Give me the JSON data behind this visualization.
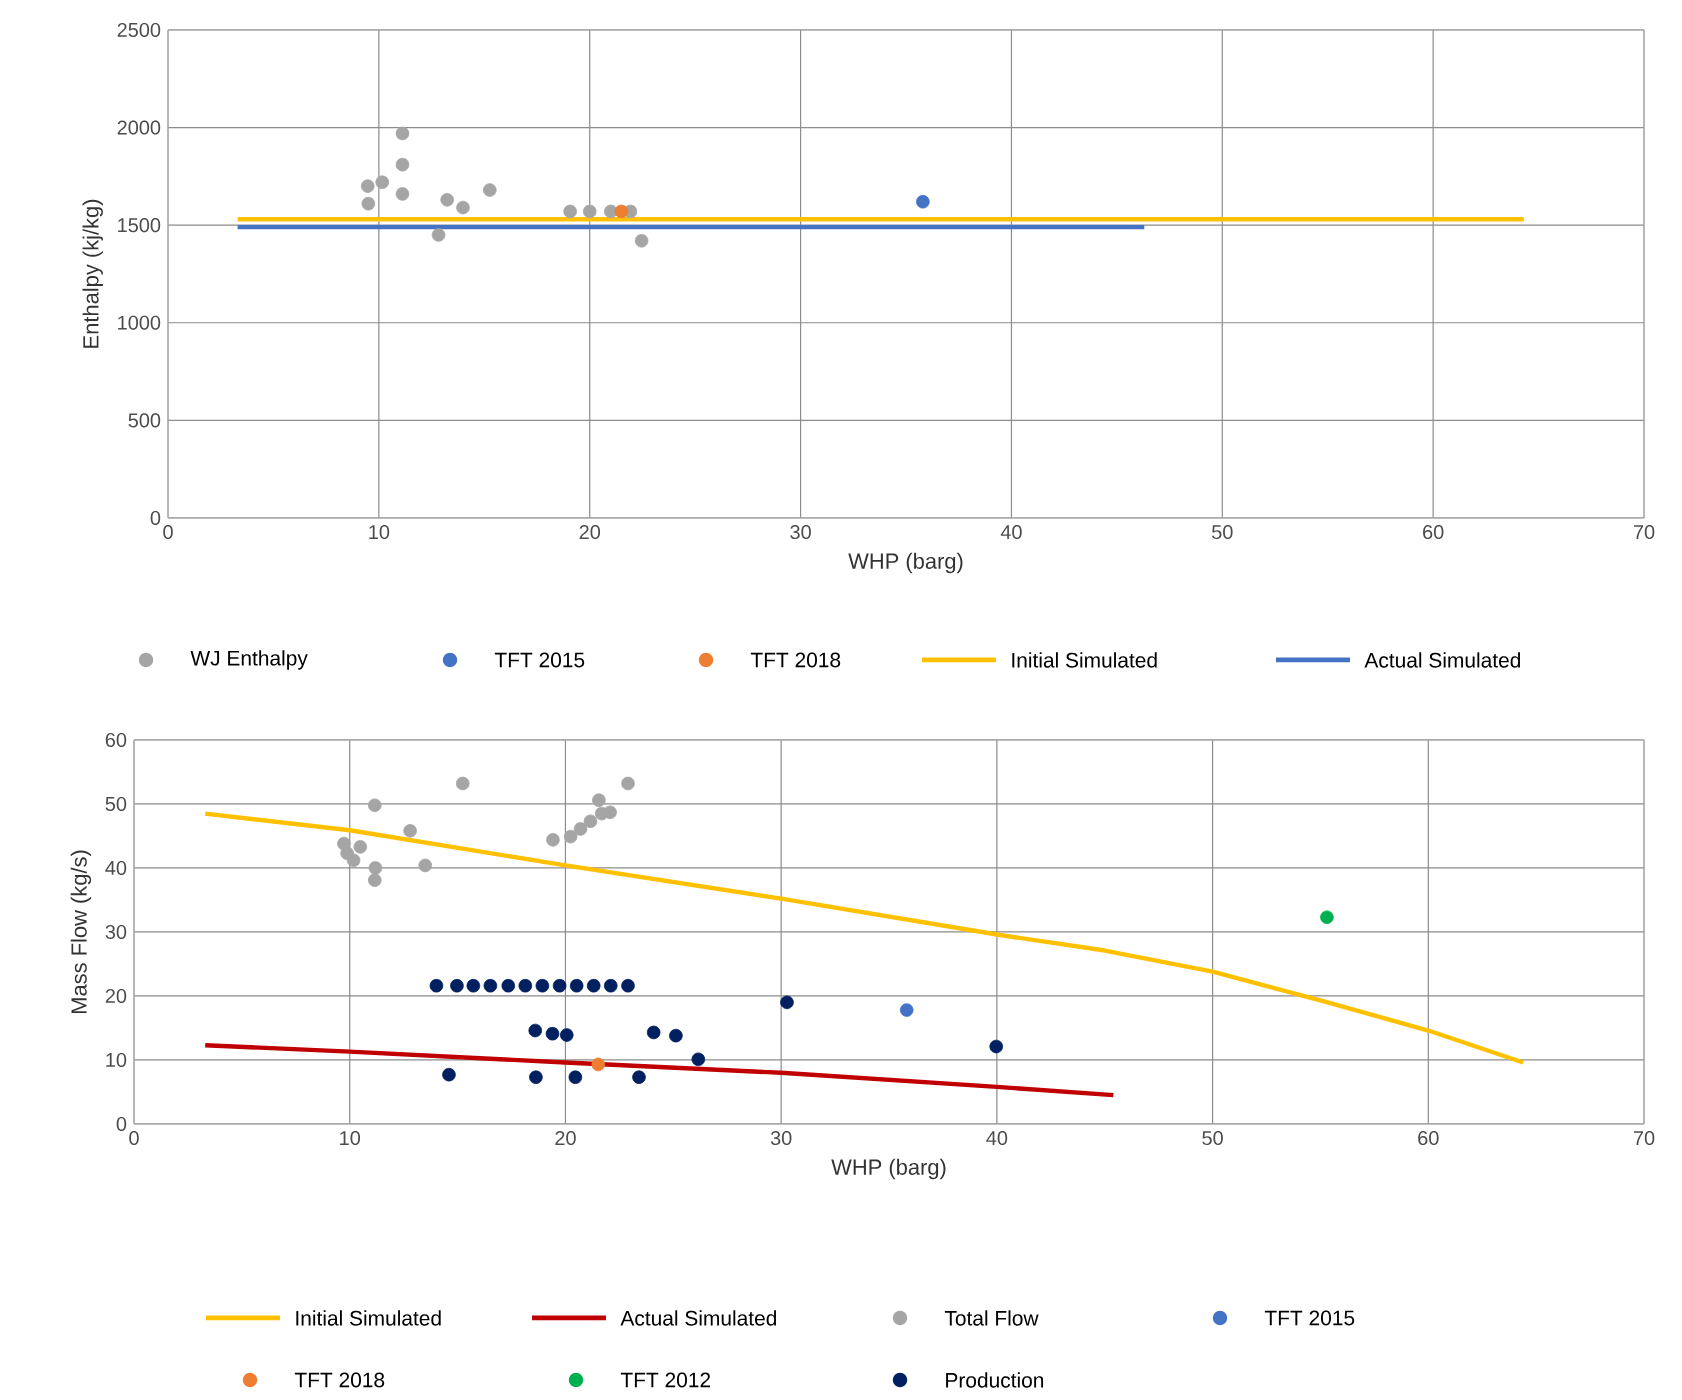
{
  "chart_data": [
    {
      "type": "scatter",
      "xlabel": "WHP (barg)",
      "ylabel": "Enthalpy (kj/kg)",
      "xlim": [
        0,
        70
      ],
      "ylim": [
        0,
        2500
      ],
      "xticks": [
        0,
        10,
        20,
        30,
        40,
        50,
        60,
        70
      ],
      "yticks": [
        0,
        500,
        1000,
        1500,
        2000,
        2500
      ],
      "grid": true,
      "legend": "bottom",
      "marker": "circle",
      "series": [
        {
          "name": "WJ Enthalpy",
          "color": "#a5a5a5",
          "x": [
            9.47,
            10.16,
            9.5,
            11.12,
            11.12,
            11.12,
            12.83,
            13.24,
            13.99,
            15.26,
            19.07,
            20.0,
            21.0,
            21.93,
            22.46
          ],
          "values": [
            1700,
            1720,
            1610,
            1970,
            1810,
            1660,
            1450,
            1630,
            1590,
            1680,
            1570,
            1570,
            1570,
            1570,
            1420
          ]
        },
        {
          "name": "TFT 2015",
          "color": "#4472c4",
          "x": [
            35.8
          ],
          "values": [
            1620
          ]
        },
        {
          "name": "TFT 2018",
          "color": "#ed7d31",
          "x": [
            21.5
          ],
          "values": [
            1570
          ]
        },
        {
          "name": "Initial Simulated",
          "type": "line",
          "marker": "none",
          "color": "#ffc000",
          "x": [
            3.3,
            64.3
          ],
          "values": [
            1530,
            1530
          ]
        },
        {
          "name": "Actual Simulated",
          "type": "line",
          "marker": "none",
          "color": "#4472c4",
          "x": [
            3.3,
            46.3
          ],
          "values": [
            1490,
            1490
          ]
        }
      ]
    },
    {
      "type": "scatter",
      "xlabel": "WHP (barg)",
      "ylabel": "Mass Flow (kg/s)",
      "xlim": [
        0,
        70
      ],
      "ylim": [
        0,
        60
      ],
      "xticks": [
        0,
        10,
        20,
        30,
        40,
        50,
        60,
        70
      ],
      "yticks": [
        0,
        10,
        20,
        30,
        40,
        50,
        60
      ],
      "grid": true,
      "legend": "bottom",
      "marker": "circle",
      "series": [
        {
          "name": "Initial Simulated",
          "type": "line",
          "marker": "none",
          "color": "#ffc000",
          "x": [
            3.3,
            10,
            20,
            30,
            40,
            45,
            50,
            55,
            60,
            64.4
          ],
          "values": [
            48.5,
            45.9,
            40.4,
            35.2,
            29.6,
            27.1,
            23.8,
            19.3,
            14.6,
            9.6
          ]
        },
        {
          "name": "Actual Simulated",
          "type": "line",
          "marker": "none",
          "color": "#c00000",
          "x": [
            3.3,
            10,
            20,
            30,
            40,
            45.4
          ],
          "values": [
            12.3,
            11.3,
            9.6,
            8.0,
            5.8,
            4.5
          ]
        },
        {
          "name": "Total Flow",
          "color": "#a5a5a5",
          "x": [
            15.24,
            22.9,
            11.16,
            12.8,
            9.73,
            10.49,
            9.88,
            10.18,
            13.5,
            11.19,
            11.16,
            19.42,
            20.24,
            20.7,
            21.16,
            21.55,
            21.68,
            22.07
          ],
          "values": [
            53.2,
            53.2,
            49.8,
            45.8,
            43.8,
            43.3,
            42.3,
            41.2,
            40.4,
            40.0,
            38.1,
            44.4,
            44.9,
            46.1,
            47.3,
            50.6,
            48.5,
            48.7
          ]
        },
        {
          "name": "TFT 2015",
          "color": "#4472c4",
          "x": [
            35.82
          ],
          "values": [
            17.8
          ]
        },
        {
          "name": "TFT 2018",
          "color": "#ed7d31",
          "x": [
            21.52
          ],
          "values": [
            9.3
          ]
        },
        {
          "name": "TFT 2012",
          "color": "#00b050",
          "x": [
            55.3
          ],
          "values": [
            32.3
          ]
        },
        {
          "name": "Production",
          "color": "#002060",
          "x": [
            14.02,
            14.97,
            15.73,
            16.52,
            17.35,
            18.14,
            18.93,
            19.73,
            20.52,
            21.31,
            22.1,
            22.9,
            18.6,
            19.4,
            20.06,
            24.09,
            25.12,
            26.16,
            30.27,
            39.97,
            14.6,
            18.63,
            20.46,
            23.41
          ],
          "values": [
            21.6,
            21.6,
            21.6,
            21.6,
            21.6,
            21.6,
            21.6,
            21.6,
            21.6,
            21.6,
            21.6,
            21.6,
            14.6,
            14.1,
            13.9,
            14.3,
            13.8,
            10.1,
            19.0,
            12.1,
            7.7,
            7.3,
            7.3,
            7.3
          ]
        }
      ]
    }
  ]
}
